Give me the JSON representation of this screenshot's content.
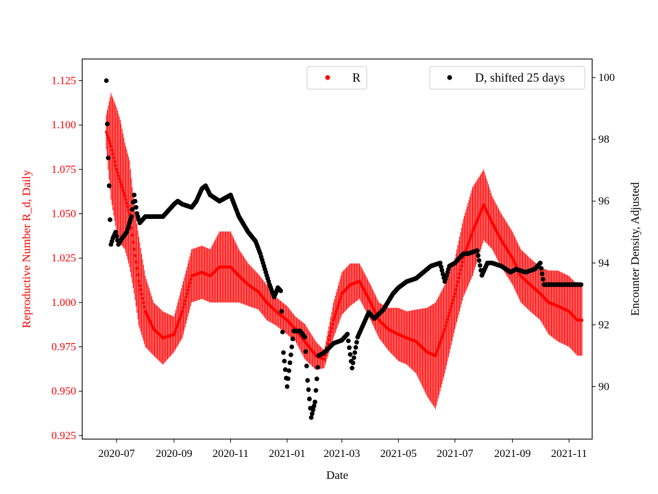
{
  "chart_data": {
    "type": "scatter",
    "xlabel": "Date",
    "x_ticks": [
      "2020-07",
      "2020-09",
      "2020-11",
      "2021-01",
      "2021-03",
      "2021-05",
      "2021-07",
      "2021-09",
      "2021-11"
    ],
    "y_left": {
      "label": "Reproductive Number R_d, Daily",
      "ticks": [
        "0.925",
        "0.950",
        "0.975",
        "1.000",
        "1.025",
        "1.050",
        "1.075",
        "1.100",
        "1.125"
      ],
      "range": [
        0.923,
        1.1372
      ],
      "color": "#ff0000"
    },
    "y_right": {
      "label": "Encounter Density, Adjusted",
      "ticks": [
        "90",
        "92",
        "94",
        "96",
        "98",
        "100"
      ],
      "range": [
        88.3,
        100.6
      ],
      "color": "#000000"
    },
    "x_range": [
      "2020-05-25",
      "2021-11-26"
    ],
    "legend_placement": [
      "top-center",
      "top-right"
    ],
    "series": [
      {
        "name": "R",
        "axis": "left",
        "color": "#ff0000",
        "marker": "point with vertical error bar",
        "x": [
          "2020-06-20",
          "2020-06-25",
          "2020-07-01",
          "2020-07-05",
          "2020-07-10",
          "2020-07-15",
          "2020-07-20",
          "2020-07-25",
          "2020-08-01",
          "2020-08-10",
          "2020-08-20",
          "2020-09-01",
          "2020-09-10",
          "2020-09-20",
          "2020-10-01",
          "2020-10-10",
          "2020-10-20",
          "2020-11-01",
          "2020-11-10",
          "2020-11-20",
          "2020-12-01",
          "2020-12-10",
          "2020-12-20",
          "2021-01-01",
          "2021-01-10",
          "2021-01-20",
          "2021-02-01",
          "2021-02-10",
          "2021-02-20",
          "2021-03-01",
          "2021-03-10",
          "2021-03-20",
          "2021-04-01",
          "2021-04-10",
          "2021-04-20",
          "2021-05-01",
          "2021-05-10",
          "2021-05-20",
          "2021-06-01",
          "2021-06-10",
          "2021-06-20",
          "2021-07-01",
          "2021-07-10",
          "2021-07-20",
          "2021-08-01",
          "2021-08-10",
          "2021-08-20",
          "2021-09-01",
          "2021-09-10",
          "2021-09-20",
          "2021-10-01",
          "2021-10-10",
          "2021-10-20",
          "2021-11-01",
          "2021-11-10",
          "2021-11-15"
        ],
        "y": [
          1.096,
          1.088,
          1.075,
          1.068,
          1.06,
          1.05,
          1.03,
          1.012,
          0.995,
          0.985,
          0.98,
          0.982,
          0.995,
          1.015,
          1.017,
          1.015,
          1.02,
          1.02,
          1.015,
          1.01,
          1.006,
          1.0,
          0.995,
          0.99,
          0.985,
          0.978,
          0.97,
          0.968,
          0.99,
          1.005,
          1.01,
          1.012,
          1.0,
          0.99,
          0.985,
          0.982,
          0.98,
          0.978,
          0.972,
          0.97,
          0.985,
          1.005,
          1.025,
          1.04,
          1.055,
          1.045,
          1.035,
          1.025,
          1.015,
          1.01,
          1.005,
          1.0,
          0.998,
          0.995,
          0.99,
          0.99
        ],
        "err": [
          0.01,
          0.03,
          0.035,
          0.035,
          0.03,
          0.03,
          0.025,
          0.025,
          0.02,
          0.015,
          0.015,
          0.01,
          0.015,
          0.015,
          0.015,
          0.015,
          0.02,
          0.02,
          0.015,
          0.012,
          0.01,
          0.01,
          0.008,
          0.008,
          0.007,
          0.01,
          0.008,
          0.005,
          0.01,
          0.012,
          0.012,
          0.01,
          0.01,
          0.01,
          0.012,
          0.015,
          0.015,
          0.018,
          0.025,
          0.03,
          0.025,
          0.02,
          0.022,
          0.025,
          0.02,
          0.015,
          0.015,
          0.015,
          0.015,
          0.015,
          0.015,
          0.018,
          0.02,
          0.02,
          0.02,
          0.02
        ]
      },
      {
        "name": "D, shifted 25 days",
        "axis": "right",
        "color": "#000000",
        "marker": "point",
        "x": [
          "2020-06-20",
          "2020-06-21",
          "2020-06-22",
          "2020-06-23",
          "2020-06-24",
          "2020-06-25",
          "2020-06-27",
          "2020-06-30",
          "2020-07-03",
          "2020-07-07",
          "2020-07-12",
          "2020-07-17",
          "2020-07-20",
          "2020-07-23",
          "2020-07-26",
          "2020-08-01",
          "2020-08-10",
          "2020-08-20",
          "2020-09-01",
          "2020-09-05",
          "2020-09-10",
          "2020-09-20",
          "2020-09-25",
          "2020-10-01",
          "2020-10-05",
          "2020-10-10",
          "2020-10-20",
          "2020-11-01",
          "2020-11-10",
          "2020-11-20",
          "2020-11-28",
          "2020-12-03",
          "2020-12-08",
          "2020-12-13",
          "2020-12-18",
          "2020-12-22",
          "2020-12-25",
          "2020-12-28",
          "2021-01-01",
          "2021-01-08",
          "2021-01-15",
          "2021-01-20",
          "2021-01-23",
          "2021-01-27",
          "2021-01-31",
          "2021-02-04",
          "2021-02-10",
          "2021-02-20",
          "2021-03-01",
          "2021-03-07",
          "2021-03-12",
          "2021-03-18",
          "2021-03-24",
          "2021-03-30",
          "2021-04-05",
          "2021-04-15",
          "2021-04-25",
          "2021-05-01",
          "2021-05-10",
          "2021-05-20",
          "2021-05-28",
          "2021-06-05",
          "2021-06-15",
          "2021-06-20",
          "2021-06-25",
          "2021-07-01",
          "2021-07-10",
          "2021-07-15",
          "2021-07-25",
          "2021-07-30",
          "2021-08-05",
          "2021-08-10",
          "2021-08-20",
          "2021-08-30",
          "2021-09-05",
          "2021-09-15",
          "2021-09-25",
          "2021-10-01",
          "2021-10-05",
          "2021-10-15",
          "2021-10-25",
          "2021-11-05",
          "2021-11-14"
        ],
        "y": [
          99.9,
          98.5,
          97.4,
          96.5,
          95.4,
          94.6,
          94.8,
          95.0,
          94.6,
          94.8,
          95.0,
          95.5,
          96.2,
          95.6,
          95.3,
          95.5,
          95.5,
          95.5,
          95.9,
          96.0,
          95.9,
          95.8,
          96.0,
          96.4,
          96.5,
          96.2,
          96.0,
          96.2,
          95.5,
          95.0,
          94.7,
          94.3,
          93.8,
          93.3,
          92.9,
          93.2,
          93.1,
          91.1,
          90.0,
          91.8,
          91.8,
          91.6,
          90.2,
          89.0,
          89.5,
          91.0,
          91.1,
          91.4,
          91.5,
          91.7,
          90.6,
          91.6,
          92.0,
          92.4,
          92.2,
          92.5,
          93.0,
          93.2,
          93.4,
          93.5,
          93.7,
          93.9,
          94.0,
          93.4,
          93.9,
          94.0,
          94.3,
          94.3,
          94.4,
          93.6,
          94.0,
          94.0,
          93.9,
          93.7,
          93.8,
          93.7,
          93.8,
          94.0,
          93.3,
          93.3,
          93.3,
          93.3,
          93.3
        ]
      }
    ]
  }
}
